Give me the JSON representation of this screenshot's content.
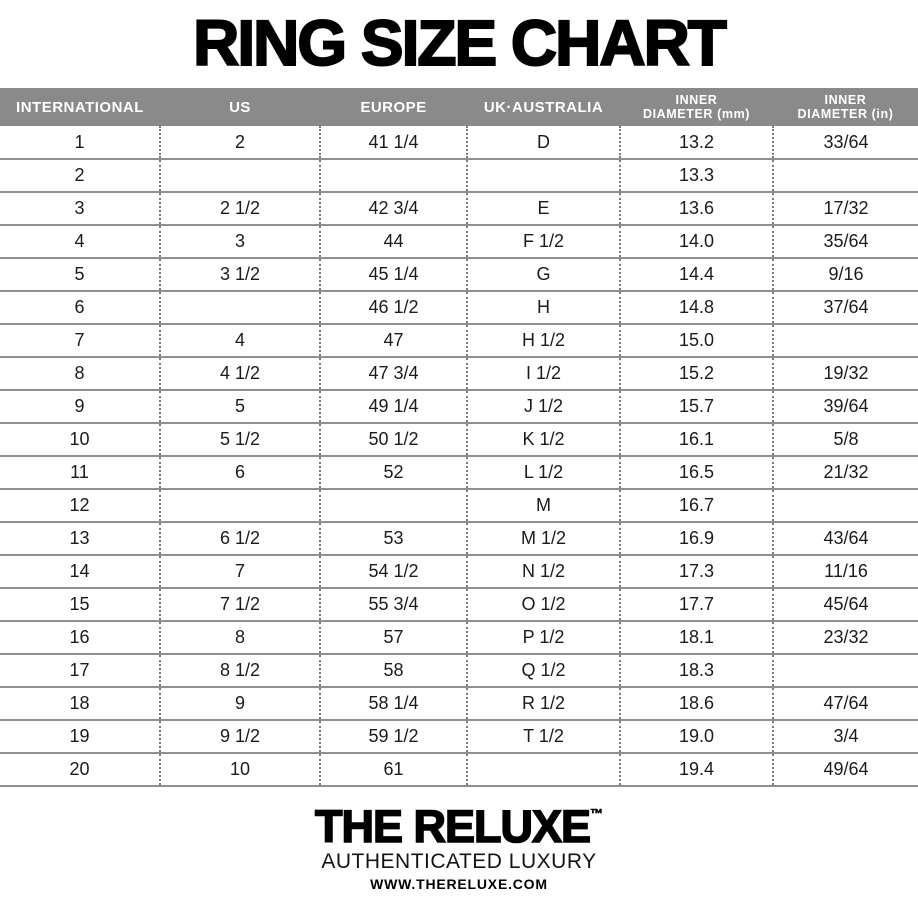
{
  "title": "RING SIZE CHART",
  "chart_data": {
    "type": "table",
    "title": "RING SIZE CHART",
    "columns": [
      "INTERNATIONAL",
      "US",
      "EUROPE",
      "UK·AUSTRALIA",
      "INNER DIAMETER (mm)",
      "INNER DIAMETER (in)"
    ],
    "rows": [
      [
        "1",
        "2",
        "41 1/4",
        "D",
        "13.2",
        "33/64"
      ],
      [
        "2",
        "",
        "",
        "",
        "13.3",
        ""
      ],
      [
        "3",
        "2 1/2",
        "42 3/4",
        "E",
        "13.6",
        "17/32"
      ],
      [
        "4",
        "3",
        "44",
        "F 1/2",
        "14.0",
        "35/64"
      ],
      [
        "5",
        "3 1/2",
        "45 1/4",
        "G",
        "14.4",
        "9/16"
      ],
      [
        "6",
        "",
        "46 1/2",
        "H",
        "14.8",
        "37/64"
      ],
      [
        "7",
        "4",
        "47",
        "H 1/2",
        "15.0",
        ""
      ],
      [
        "8",
        "4 1/2",
        "47 3/4",
        "I 1/2",
        "15.2",
        "19/32"
      ],
      [
        "9",
        "5",
        "49 1/4",
        "J 1/2",
        "15.7",
        "39/64"
      ],
      [
        "10",
        "5 1/2",
        "50 1/2",
        "K 1/2",
        "16.1",
        "5/8"
      ],
      [
        "11",
        "6",
        "52",
        "L 1/2",
        "16.5",
        "21/32"
      ],
      [
        "12",
        "",
        "",
        "M",
        "16.7",
        ""
      ],
      [
        "13",
        "6 1/2",
        "53",
        "M 1/2",
        "16.9",
        "43/64"
      ],
      [
        "14",
        "7",
        "54 1/2",
        "N 1/2",
        "17.3",
        "11/16"
      ],
      [
        "15",
        "7 1/2",
        "55 3/4",
        "O 1/2",
        "17.7",
        "45/64"
      ],
      [
        "16",
        "8",
        "57",
        "P 1/2",
        "18.1",
        "23/32"
      ],
      [
        "17",
        "8 1/2",
        "58",
        "Q 1/2",
        "18.3",
        ""
      ],
      [
        "18",
        "9",
        "58 1/4",
        "R 1/2",
        "18.6",
        "47/64"
      ],
      [
        "19",
        "9 1/2",
        "59 1/2",
        "T 1/2",
        "19.0",
        "3/4"
      ],
      [
        "20",
        "10",
        "61",
        "",
        "19.4",
        "49/64"
      ]
    ]
  },
  "table": {
    "headers": [
      {
        "key": "international",
        "lines": [
          "INTERNATIONAL"
        ]
      },
      {
        "key": "us",
        "lines": [
          "US"
        ]
      },
      {
        "key": "europe",
        "lines": [
          "EUROPE"
        ]
      },
      {
        "key": "uk-australia",
        "lines": [
          "UK·AUSTRALIA"
        ]
      },
      {
        "key": "inner-diameter-mm",
        "lines": [
          "INNER",
          "DIAMETER (mm)"
        ]
      },
      {
        "key": "inner-diameter-in",
        "lines": [
          "INNER",
          "DIAMETER (in)"
        ]
      }
    ]
  },
  "footer": {
    "brand": "THE RELUXE",
    "trademark": "™",
    "tagline": "AUTHENTICATED LUXURY",
    "website": "WWW.THERELUXE.COM"
  },
  "colors": {
    "header_background": "#8a8a8a",
    "header_text": "#ffffff",
    "row_separator": "#8f8f8f",
    "column_dots": "#7c7c7c",
    "text": "#1b1b1b",
    "title_text": "#000000"
  }
}
